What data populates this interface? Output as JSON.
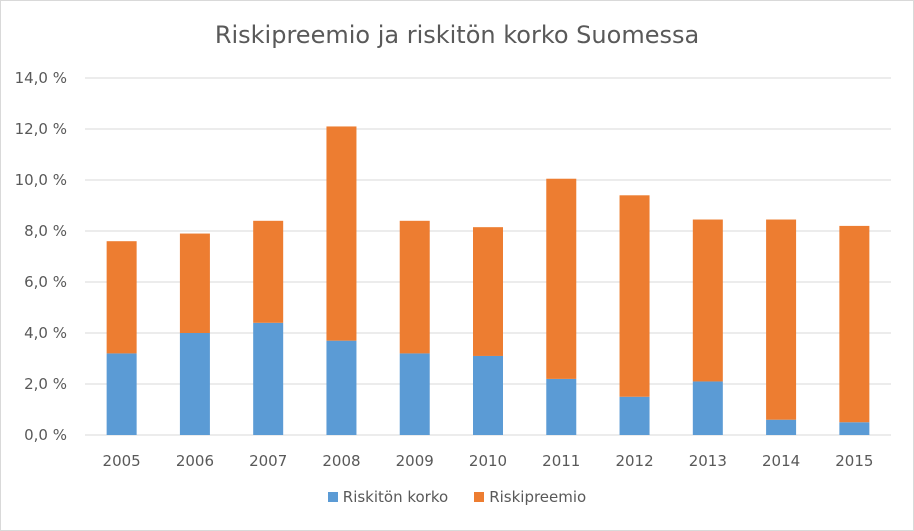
{
  "chart_data": {
    "type": "bar",
    "stacked": true,
    "title": "Riskipreemio ja riskitön korko Suomessa",
    "xlabel": "",
    "ylabel": "",
    "categories": [
      "2005",
      "2006",
      "2007",
      "2008",
      "2009",
      "2010",
      "2011",
      "2012",
      "2013",
      "2014",
      "2015"
    ],
    "series": [
      {
        "name": "Riskitön korko",
        "color": "#5b9bd5",
        "values": [
          3.2,
          4.0,
          4.4,
          3.7,
          3.2,
          3.1,
          2.2,
          1.5,
          2.1,
          0.6,
          0.5
        ]
      },
      {
        "name": "Riskipreemio",
        "color": "#ed7d31",
        "values": [
          4.4,
          3.9,
          4.0,
          8.4,
          5.2,
          5.05,
          7.85,
          7.9,
          6.35,
          7.85,
          7.7
        ]
      }
    ],
    "ylim": [
      0,
      14
    ],
    "yticks": [
      0,
      2,
      4,
      6,
      8,
      10,
      12,
      14
    ],
    "ytick_labels": [
      "0,0 %",
      "2,0 %",
      "4,0 %",
      "6,0 %",
      "8,0 %",
      "10,0 %",
      "12,0 %",
      "14,0 %"
    ],
    "grid": true,
    "legend_position": "bottom",
    "gridline_color": "#d9d9d9"
  }
}
